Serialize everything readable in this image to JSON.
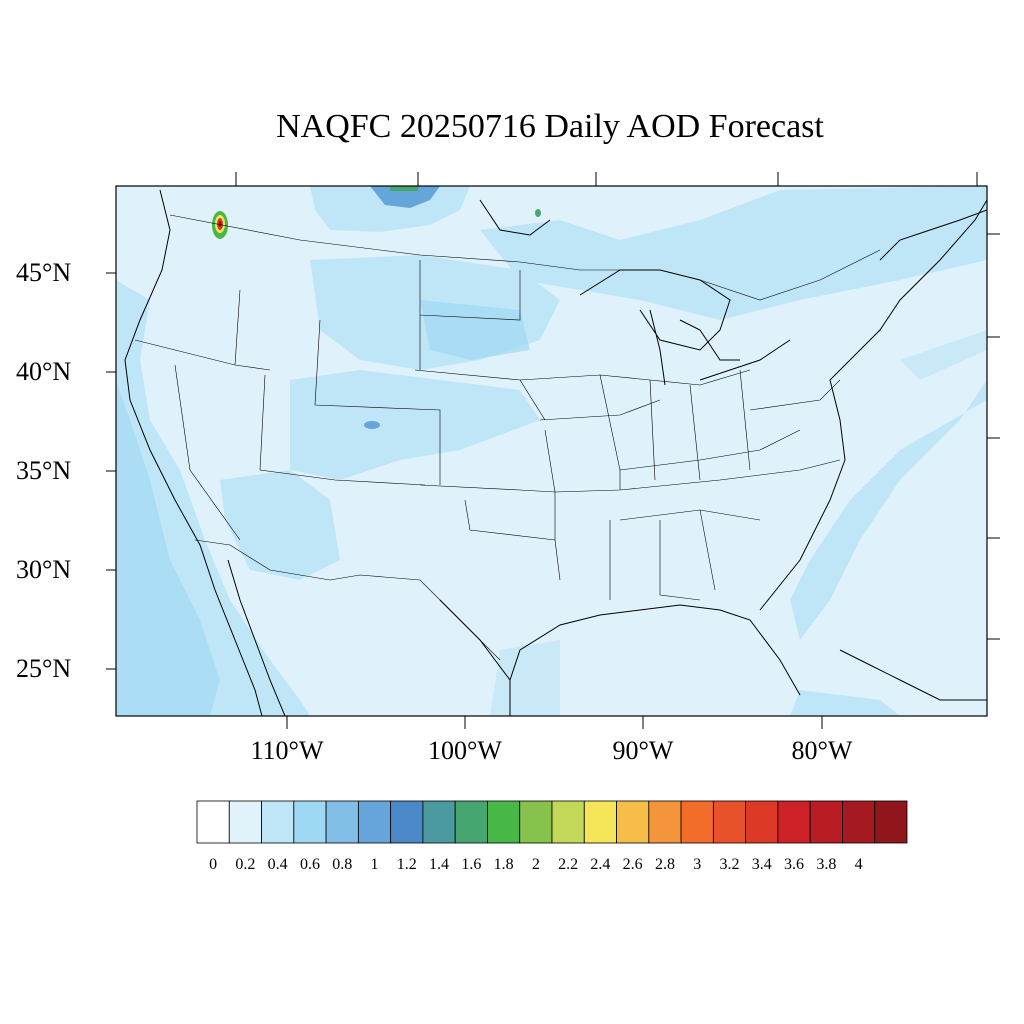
{
  "title": "NAQFC 20250716 Daily AOD Forecast",
  "lat_labels": [
    "45°N",
    "40°N",
    "35°N",
    "30°N",
    "25°N"
  ],
  "lon_labels": [
    "110°W",
    "100°W",
    "90°W",
    "80°W"
  ],
  "colorbar": {
    "colors": [
      "#ffffff",
      "#e0f3fb",
      "#bfe6f7",
      "#9fd8f3",
      "#82bfe6",
      "#66a5d9",
      "#4a88c7",
      "#4a9aa0",
      "#46a670",
      "#47b748",
      "#86c24c",
      "#c3d758",
      "#f5e659",
      "#f6bd49",
      "#f5953b",
      "#f26c2a",
      "#e9512b",
      "#dc3a26",
      "#ce2127",
      "#b91c23",
      "#a51a21",
      "#8f161b"
    ],
    "labels": [
      "0",
      "0.2",
      "0.4",
      "0.6",
      "0.8",
      "1",
      "1.2",
      "1.4",
      "1.6",
      "1.8",
      "2",
      "2.2",
      "2.4",
      "2.6",
      "2.8",
      "3",
      "3.2",
      "3.4",
      "3.6",
      "3.8",
      "4"
    ]
  },
  "map": {
    "background_color": "#dff2fb",
    "plume_color_light": "#bfe6f7",
    "plume_color_mid": "#9fd8f3",
    "plume_color_dark": "#66a5d9",
    "hotspot_colors": [
      "#47b748",
      "#f5e659",
      "#dc3a26",
      "#8f161b"
    ]
  }
}
